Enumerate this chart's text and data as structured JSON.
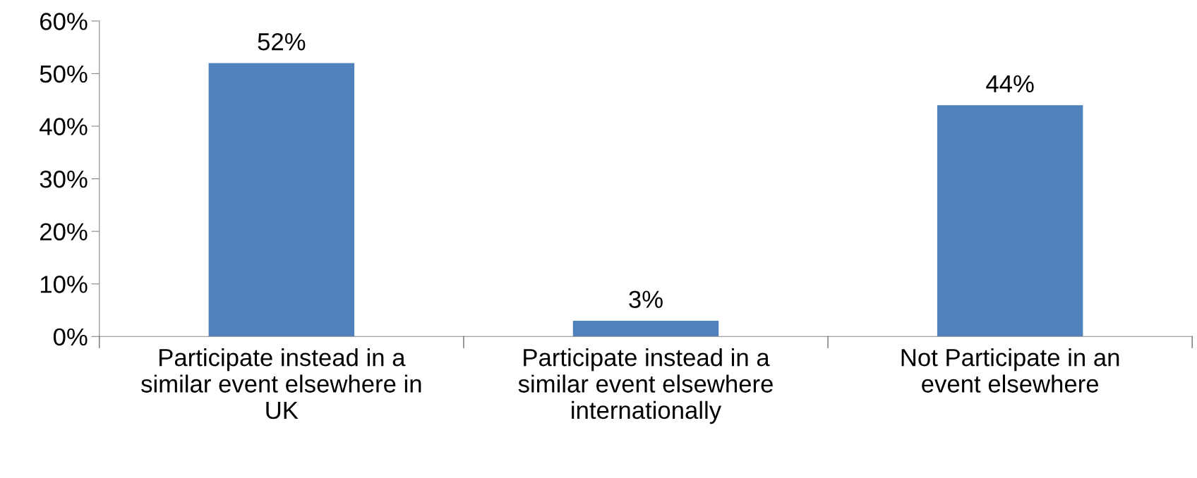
{
  "chart_data": {
    "type": "bar",
    "categories": [
      "Participate instead in a\nsimilar event elsewhere in\nUK",
      "Participate instead in a\nsimilar event elsewhere\ninternationally",
      "Not Participate in an\nevent elsewhere"
    ],
    "values": [
      52,
      3,
      44
    ],
    "color": "#4f81bd",
    "value_labels": [
      "52%",
      "3%",
      "44%"
    ],
    "ylim": [
      0,
      60
    ],
    "yticks": [
      {
        "value": 0,
        "label": "0%"
      },
      {
        "value": 10,
        "label": "10%"
      },
      {
        "value": 20,
        "label": "20%"
      },
      {
        "value": 30,
        "label": "30%"
      },
      {
        "value": 40,
        "label": "40%"
      },
      {
        "value": 50,
        "label": "50%"
      },
      {
        "value": 60,
        "label": "60%"
      }
    ],
    "grid": false,
    "legend": false
  }
}
